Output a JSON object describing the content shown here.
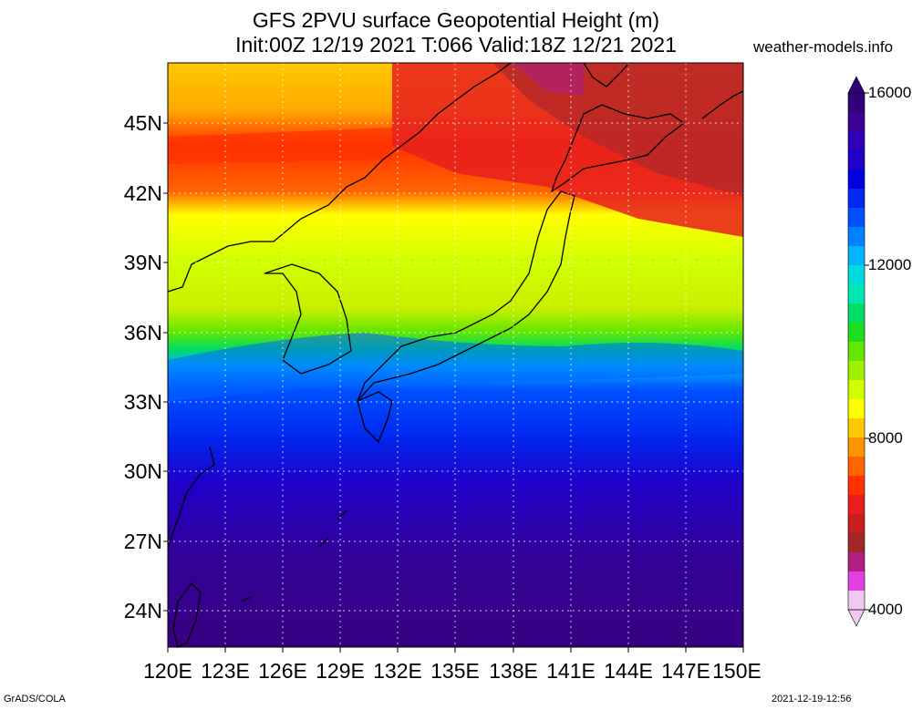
{
  "title_line1": "GFS 2PVU surface Geopotential Height (m)",
  "title_line2": "Init:00Z 12/19 2021 T:066 Valid:18Z 12/21 2021",
  "site": "weather-models.info",
  "lat_labels": [
    "45N",
    "42N",
    "39N",
    "36N",
    "33N",
    "30N",
    "27N",
    "24N"
  ],
  "lon_labels": [
    "120E",
    "123E",
    "126E",
    "129E",
    "132E",
    "135E",
    "138E",
    "141E",
    "144E",
    "147E",
    "150E"
  ],
  "colorbar": {
    "labels": [
      "16000",
      "12000",
      "8000",
      "4000"
    ],
    "colors": [
      "#f0c8f0",
      "#e040e0",
      "#b02080",
      "#a02828",
      "#c81e1e",
      "#e81e1e",
      "#ff3200",
      "#ff6400",
      "#ff9600",
      "#ffc800",
      "#ffff00",
      "#d2ff00",
      "#a0f000",
      "#64e600",
      "#1edc1e",
      "#00dc64",
      "#00e6b4",
      "#00dcdc",
      "#00b4ff",
      "#0082ff",
      "#0050ff",
      "#0028f0",
      "#0000dc",
      "#1e00c8",
      "#3200b4",
      "#3c0096",
      "#320078"
    ]
  },
  "footer_left": "GrADS/COLA",
  "footer_right": "2021-12-19-12:56"
}
